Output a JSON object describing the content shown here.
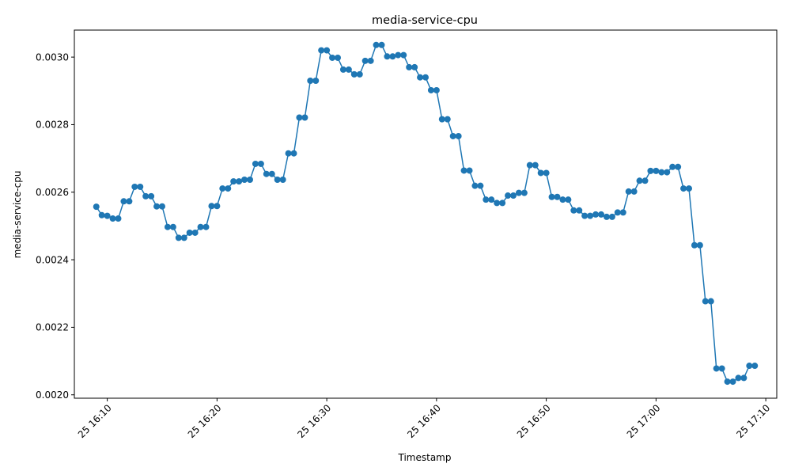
{
  "chart_data": {
    "type": "line",
    "title": "media-service-cpu",
    "xlabel": "Timestamp",
    "ylabel": "media-service-cpu",
    "x_start": "16:09:00",
    "x_end": "17:09:00",
    "xlim": [
      "16:07",
      "17:11"
    ],
    "ylim": [
      0.00199,
      0.00308
    ],
    "x_ticks": [
      "16:10",
      "16:20",
      "16:30",
      "16:40",
      "16:50",
      "17:00",
      "17:10"
    ],
    "x_tick_labels": [
      "25 16:10",
      "25 16:20",
      "25 16:30",
      "25 16:40",
      "25 16:50",
      "25 17:00",
      "25 17:10"
    ],
    "y_ticks": [
      0.002,
      0.0022,
      0.0024,
      0.0026,
      0.0028,
      0.003
    ],
    "y_tick_labels": [
      "0.0020",
      "0.0022",
      "0.0024",
      "0.0026",
      "0.0028",
      "0.0030"
    ],
    "grid": false,
    "color": "#1f77b4",
    "series": [
      {
        "values": [
          0.002557,
          0.002532,
          0.00253,
          0.002522,
          0.002522,
          0.002573,
          0.002573,
          0.002616,
          0.002616,
          0.002588,
          0.002588,
          0.002558,
          0.002558,
          0.002497,
          0.002497,
          0.002465,
          0.002465,
          0.00248,
          0.00248,
          0.002497,
          0.002497,
          0.002559,
          0.002559,
          0.002611,
          0.002611,
          0.002632,
          0.002632,
          0.002637,
          0.002637,
          0.002684,
          0.002684,
          0.002654,
          0.002654,
          0.002637,
          0.002637,
          0.002715,
          0.002715,
          0.002821,
          0.002821,
          0.00293,
          0.00293,
          0.00302,
          0.00302,
          0.002998,
          0.002998,
          0.002963,
          0.002963,
          0.002949,
          0.002949,
          0.002989,
          0.002989,
          0.003036,
          0.003036,
          0.003002,
          0.003002,
          0.003006,
          0.003006,
          0.00297,
          0.00297,
          0.00294,
          0.00294,
          0.002902,
          0.002902,
          0.002816,
          0.002816,
          0.002766,
          0.002766,
          0.002664,
          0.002664,
          0.002619,
          0.002619,
          0.002578,
          0.002578,
          0.002568,
          0.002568,
          0.00259,
          0.00259,
          0.002598,
          0.002598,
          0.00268,
          0.00268,
          0.002657,
          0.002657,
          0.002586,
          0.002586,
          0.002578,
          0.002578,
          0.002546,
          0.002546,
          0.00253,
          0.00253,
          0.002534,
          0.002534,
          0.002527,
          0.002527,
          0.00254,
          0.00254,
          0.002602,
          0.002602,
          0.002634,
          0.002634,
          0.002663,
          0.002663,
          0.002659,
          0.002659,
          0.002675,
          0.002675,
          0.002611,
          0.002611,
          0.002443,
          0.002443,
          0.002277,
          0.002277,
          0.002078,
          0.002078,
          0.002039,
          0.002039,
          0.00205,
          0.00205,
          0.002086,
          0.002086
        ]
      }
    ]
  }
}
